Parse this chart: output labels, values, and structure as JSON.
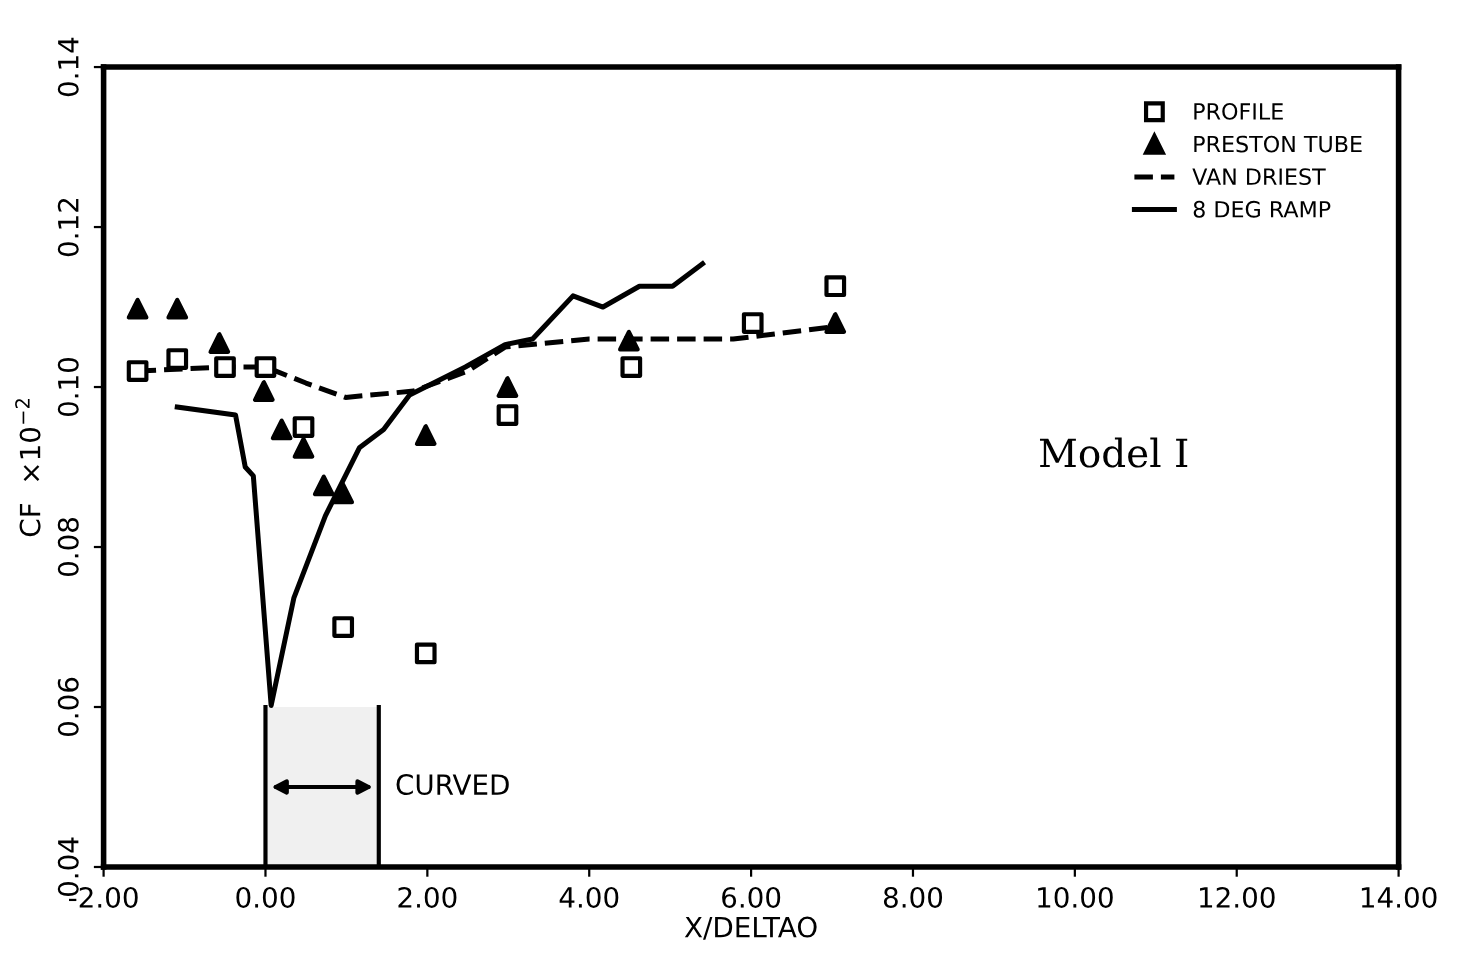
{
  "chart_data": {
    "type": "scatter",
    "xlabel": "X/DELTAO",
    "ylabel": "CF  ×10$^{−2}$",
    "xlim": [
      -2,
      14
    ],
    "ylim": [
      0.04,
      0.14
    ],
    "xticks": [
      {
        "value": -2,
        "label": "-2.00"
      },
      {
        "value": 0,
        "label": "0.00"
      },
      {
        "value": 2,
        "label": "2.00"
      },
      {
        "value": 4,
        "label": "4.00"
      },
      {
        "value": 6,
        "label": "6.00"
      },
      {
        "value": 8,
        "label": "8.00"
      },
      {
        "value": 10,
        "label": "10.00"
      },
      {
        "value": 12,
        "label": "12.00"
      },
      {
        "value": 14,
        "label": "14.00"
      }
    ],
    "yticks": [
      {
        "value": 0.04,
        "label": "0.04"
      },
      {
        "value": 0.06,
        "label": "0.06"
      },
      {
        "value": 0.08,
        "label": "0.08"
      },
      {
        "value": 0.1,
        "label": "0.10"
      },
      {
        "value": 0.12,
        "label": "0.12"
      },
      {
        "value": 0.14,
        "label": "0.14"
      }
    ],
    "grid": false,
    "legend": "top right",
    "series": [
      {
        "name": "PROFILE",
        "marker": "square",
        "color": "#000000",
        "x": [
          -1.58,
          -1.09,
          -0.5,
          0.0,
          0.47,
          0.96,
          1.98,
          2.99,
          4.52,
          6.02,
          7.04
        ],
        "values": [
          0.102,
          0.1035,
          0.1025,
          0.1025,
          0.095,
          0.07,
          0.0667,
          0.0965,
          0.1025,
          0.108,
          0.1126
        ]
      },
      {
        "name": "PRESTON TUBE",
        "marker": "triangle",
        "color": "#000000",
        "x": [
          -1.58,
          -1.09,
          -0.57,
          -0.02,
          0.2,
          0.47,
          0.72,
          0.96,
          1.98,
          2.99,
          4.49,
          7.04
        ],
        "values": [
          0.1098,
          0.1098,
          0.1055,
          0.0995,
          0.0947,
          0.0924,
          0.0877,
          0.0867,
          0.094,
          0.1,
          0.1058,
          0.108
        ]
      },
      {
        "name": "VAN DRIEST",
        "type": "line",
        "line_style": "dashed",
        "color": "#000000",
        "x": [
          -1.58,
          -0.5,
          0.0,
          0.5,
          0.99,
          1.83,
          2.5,
          2.96,
          4.0,
          5.78,
          7.0
        ],
        "values": [
          0.102,
          0.1025,
          0.1025,
          0.1005,
          0.0987,
          0.0995,
          0.102,
          0.105,
          0.106,
          0.106,
          0.1075
        ]
      },
      {
        "name": "8 DEG RAMP",
        "type": "line",
        "line_style": "solid",
        "color": "#000000",
        "x": [
          -1.09,
          -0.37,
          -0.25,
          -0.15,
          0.07,
          0.35,
          0.74,
          1.16,
          1.46,
          1.78,
          2.47,
          2.96,
          3.3,
          3.8,
          4.17,
          4.62,
          5.03,
          5.4
        ],
        "values": [
          0.0975,
          0.0965,
          0.09,
          0.0889,
          0.0602,
          0.0736,
          0.0839,
          0.0924,
          0.0947,
          0.099,
          0.1025,
          0.1053,
          0.106,
          0.1114,
          0.11,
          0.1126,
          0.1126,
          0.1154
        ]
      }
    ],
    "bands": [
      {
        "axis": "x",
        "from": 0,
        "to": 1.4,
        "label": "CURVED",
        "color": "#000000"
      }
    ],
    "annotations": [
      "Model I"
    ]
  }
}
